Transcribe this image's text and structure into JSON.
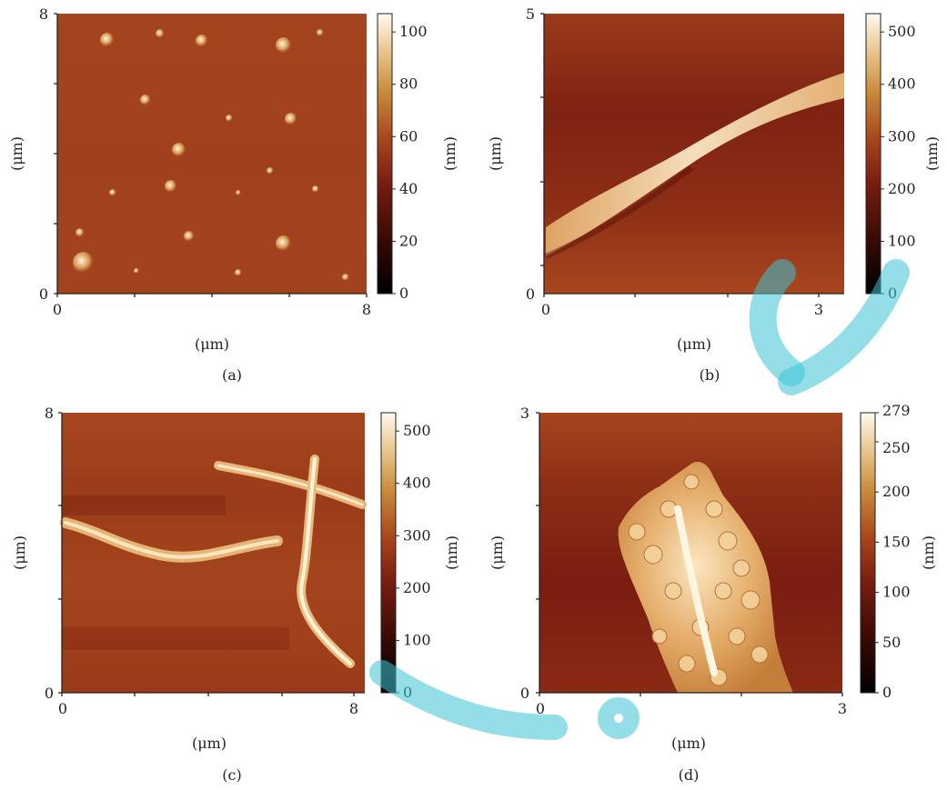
{
  "panels": [
    {
      "id": "a",
      "caption": "(a)",
      "x_ticks": [
        "0",
        "8"
      ],
      "y_ticks": [
        "0",
        "8"
      ],
      "x_unit": "(μm)",
      "y_unit": "(μm)",
      "colorbar_ticks": [
        "0",
        "20",
        "40",
        "60",
        "80",
        "100"
      ],
      "colorbar_unit": "(nm)",
      "colorbar_max": 107
    },
    {
      "id": "b",
      "caption": "(b)",
      "x_ticks": [
        "0",
        "3"
      ],
      "y_ticks": [
        "0",
        "5"
      ],
      "x_unit": "(μm)",
      "y_unit": "(μm)",
      "colorbar_ticks": [
        "0",
        "100",
        "200",
        "300",
        "400",
        "500"
      ],
      "colorbar_unit": "(nm)",
      "colorbar_max": 535
    },
    {
      "id": "c",
      "caption": "(c)",
      "x_ticks": [
        "0",
        "8"
      ],
      "y_ticks": [
        "0",
        "8"
      ],
      "x_unit": "(μm)",
      "y_unit": "(μm)",
      "colorbar_ticks": [
        "0",
        "100",
        "200",
        "300",
        "400",
        "500"
      ],
      "colorbar_unit": "(nm)",
      "colorbar_max": 535
    },
    {
      "id": "d",
      "caption": "(d)",
      "x_ticks": [
        "0",
        "3"
      ],
      "y_ticks": [
        "0",
        "3"
      ],
      "x_unit": "(μm)",
      "y_unit": "(μm)",
      "colorbar_ticks": [
        "0",
        "50",
        "100",
        "150",
        "200",
        "250",
        "279"
      ],
      "colorbar_unit": "(nm)",
      "colorbar_max": 279
    }
  ],
  "colors": {
    "afm_dark": "#000000",
    "afm_mid": "#9a3a1a",
    "afm_light": "#fffaf0",
    "watermark": "#3cc3d6"
  }
}
